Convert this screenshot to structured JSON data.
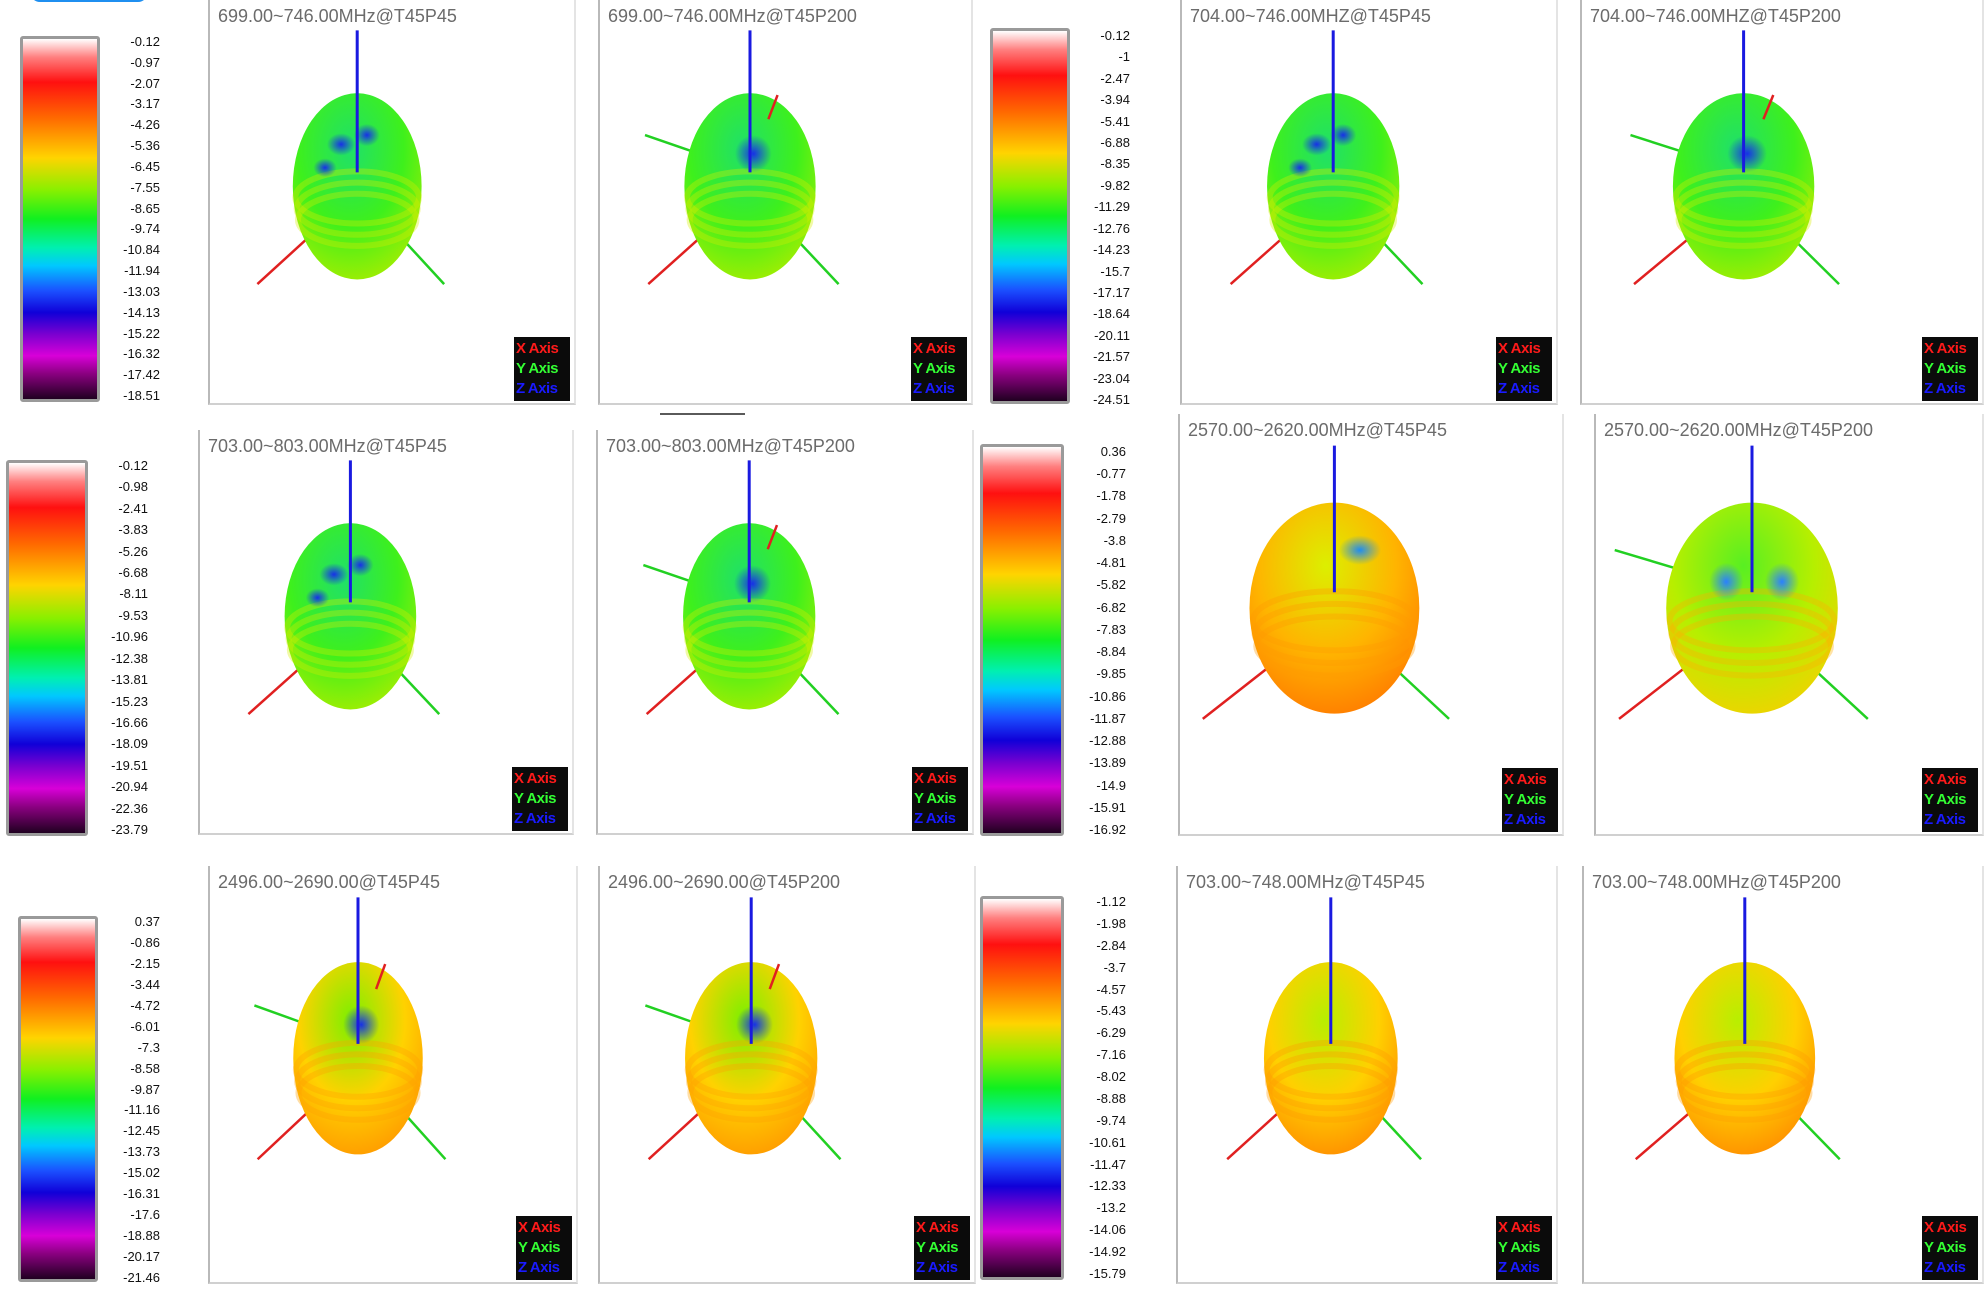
{
  "legend_labels": {
    "x": "X Axis",
    "y": "Y Axis",
    "z": "Z Axis"
  },
  "scales": [
    {
      "ticks": [
        "-0.12",
        "-0.97",
        "-2.07",
        "-3.17",
        "-4.26",
        "-5.36",
        "-6.45",
        "-7.55",
        "-8.65",
        "-9.74",
        "-10.84",
        "-11.94",
        "-13.03",
        "-14.13",
        "-15.22",
        "-16.32",
        "-17.42",
        "-18.51"
      ]
    },
    {
      "ticks": [
        "-0.12",
        "-1",
        "-2.47",
        "-3.94",
        "-5.41",
        "-6.88",
        "-8.35",
        "-9.82",
        "-11.29",
        "-12.76",
        "-14.23",
        "-15.7",
        "-17.17",
        "-18.64",
        "-20.11",
        "-21.57",
        "-23.04",
        "-24.51"
      ]
    },
    {
      "ticks": [
        "-0.12",
        "-0.98",
        "-2.41",
        "-3.83",
        "-5.26",
        "-6.68",
        "-8.11",
        "-9.53",
        "-10.96",
        "-12.38",
        "-13.81",
        "-15.23",
        "-16.66",
        "-18.09",
        "-19.51",
        "-20.94",
        "-22.36",
        "-23.79"
      ]
    },
    {
      "ticks": [
        "0.36",
        "-0.77",
        "-1.78",
        "-2.79",
        "-3.8",
        "-4.81",
        "-5.82",
        "-6.82",
        "-7.83",
        "-8.84",
        "-9.85",
        "-10.86",
        "-11.87",
        "-12.88",
        "-13.89",
        "-14.9",
        "-15.91",
        "-16.92"
      ]
    },
    {
      "ticks": [
        "0.37",
        "-0.86",
        "-2.15",
        "-3.44",
        "-4.72",
        "-6.01",
        "-7.3",
        "-8.58",
        "-9.87",
        "-11.16",
        "-12.45",
        "-13.73",
        "-15.02",
        "-16.31",
        "-17.6",
        "-18.88",
        "-20.17",
        "-21.46"
      ]
    },
    {
      "ticks": [
        "-1.12",
        "-1.98",
        "-2.84",
        "-3.7",
        "-4.57",
        "-5.43",
        "-6.29",
        "-7.16",
        "-8.02",
        "-8.88",
        "-9.74",
        "-10.61",
        "-11.47",
        "-12.33",
        "-13.2",
        "-14.06",
        "-14.92",
        "-15.79"
      ]
    }
  ],
  "plots": [
    {
      "title": "699.00~746.00MHz@T45P45",
      "palette": "green",
      "hole": "multi"
    },
    {
      "title": "699.00~746.00MHz@T45P200",
      "palette": "green",
      "hole": "single"
    },
    {
      "title": "704.00~746.00MHZ@T45P45",
      "palette": "green",
      "hole": "multi"
    },
    {
      "title": "704.00~746.00MHZ@T45P200",
      "palette": "green",
      "hole": "single"
    },
    {
      "title": "703.00~803.00MHz@T45P45",
      "palette": "green",
      "hole": "multi"
    },
    {
      "title": "703.00~803.00MHz@T45P200",
      "palette": "green",
      "hole": "single"
    },
    {
      "title": "2570.00~2620.00MHz@T45P45",
      "palette": "orange",
      "hole": "edge"
    },
    {
      "title": "2570.00~2620.00MHz@T45P200",
      "palette": "lime",
      "hole": "vee"
    },
    {
      "title": "2496.00~2690.00@T45P45",
      "palette": "warm",
      "hole": "single"
    },
    {
      "title": "2496.00~2690.00@T45P200",
      "palette": "warm",
      "hole": "single"
    },
    {
      "title": "703.00~748.00MHz@T45P45",
      "palette": "yellow",
      "hole": "none"
    },
    {
      "title": "703.00~748.00MHz@T45P200",
      "palette": "yellow",
      "hole": "none"
    }
  ]
}
